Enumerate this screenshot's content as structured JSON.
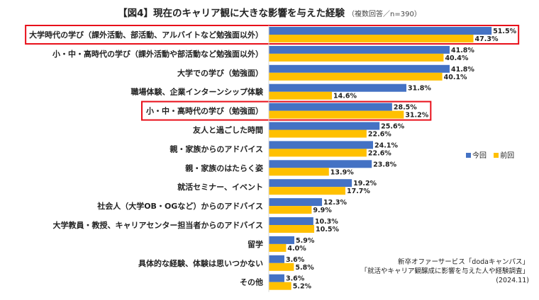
{
  "title": "【図4】現在のキャリア観に大きな影響を与えた経験",
  "subtitle": "（複数回答／n=390）",
  "legend": [
    {
      "name": "今回",
      "color": "#4472C4"
    },
    {
      "name": "前回",
      "color": "#FFC000"
    }
  ],
  "highlight_color": "#E8101A",
  "highlighted_categories": [
    0,
    4
  ],
  "source": {
    "line1": "新卒オファーサービス「dodaキャンパス」",
    "line2": "「就活やキャリア観醸成に影響を与えた人や経験調査」",
    "line3": "(2024.11)"
  },
  "chart_data": {
    "type": "bar",
    "orientation": "horizontal",
    "xlim": [
      0,
      55
    ],
    "grid": false,
    "legend_position": "right",
    "categories": [
      "大学時代の学び（課外活動、部活動、アルバイトなど勉強面以外）",
      "小・中・高時代の学び（課外活動や部活動など勉強面以外）",
      "大学での学び（勉強面）",
      "職場体験、企業インターンシップ体験",
      "小・中・高時代の学び（勉強面）",
      "友人と過ごした時間",
      "親・家族からのアドバイス",
      "親・家族のはたらく姿",
      "就活セミナー、イベント",
      "社会人（大学OB・OGなど）からのアドバイス",
      "大学教員・教授、キャリアセンター担当者からのアドバイス",
      "留学",
      "具体的な経験、体験は思いつかない",
      "その他"
    ],
    "series": [
      {
        "name": "今回",
        "values": [
          51.5,
          41.8,
          41.8,
          31.8,
          28.5,
          25.6,
          24.1,
          23.8,
          19.2,
          12.3,
          10.3,
          5.9,
          3.6,
          3.6
        ],
        "labels": [
          "51.5%",
          "41.8%",
          "41.8%",
          "31.8%",
          "28.5%",
          "25.6%",
          "24.1%",
          "23.8%",
          "19.2%",
          "12.3%",
          "10.3%",
          "5.9%",
          "3.6%",
          "3.6%"
        ]
      },
      {
        "name": "前回",
        "values": [
          47.3,
          40.4,
          40.1,
          14.6,
          31.2,
          22.6,
          22.6,
          13.9,
          17.7,
          9.9,
          10.5,
          4.0,
          5.8,
          5.2
        ],
        "labels": [
          "47.3%",
          "40.4%",
          "40.1%",
          "14.6%",
          "31.2%",
          "22.6%",
          "22.6%",
          "13.9%",
          "17.7%",
          "9.9%",
          "10.5%",
          "4.0%",
          "5.8%",
          "5.2%"
        ]
      }
    ]
  }
}
